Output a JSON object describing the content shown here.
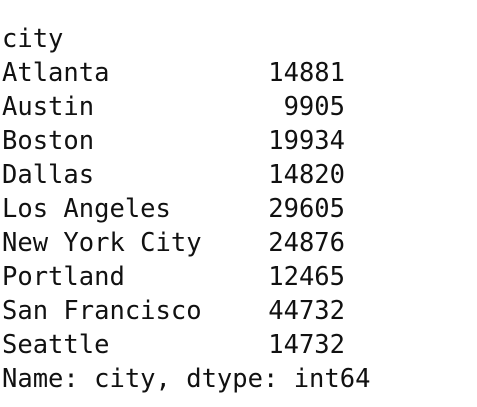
{
  "index_name": "city",
  "rows": [
    {
      "label": "Atlanta",
      "value": 14881
    },
    {
      "label": "Austin",
      "value": 9905
    },
    {
      "label": "Boston",
      "value": 19934
    },
    {
      "label": "Dallas",
      "value": 14820
    },
    {
      "label": "Los Angeles",
      "value": 29605
    },
    {
      "label": "New York City",
      "value": 24876
    },
    {
      "label": "Portland",
      "value": 12465
    },
    {
      "label": "San Francisco",
      "value": 44732
    },
    {
      "label": "Seattle",
      "value": 14732
    }
  ],
  "footer": "Name: city, dtype: int64"
}
